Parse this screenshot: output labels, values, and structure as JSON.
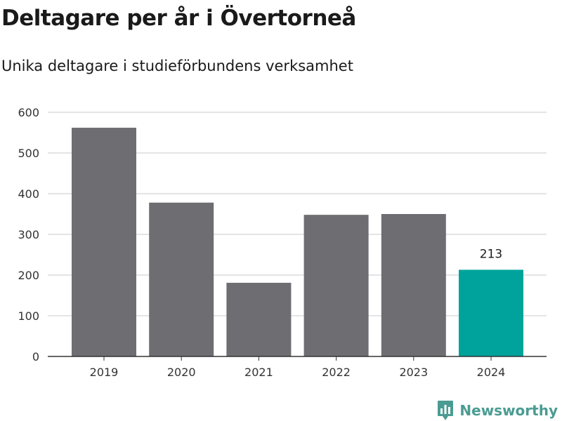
{
  "title": "Deltagare per år i Övertorneå",
  "subtitle": "Unika deltagare i studieförbundens verksamhet",
  "brand": {
    "name": "Newsworthy",
    "icon": "bar-chart-speech-bubble-icon",
    "color": "#4a9c92"
  },
  "chart_data": {
    "type": "bar",
    "title": "Deltagare per år i Övertorneå",
    "subtitle": "Unika deltagare i studieförbundens verksamhet",
    "xlabel": "",
    "ylabel": "",
    "categories": [
      "2019",
      "2020",
      "2021",
      "2022",
      "2023",
      "2024"
    ],
    "values": [
      562,
      378,
      181,
      348,
      350,
      213
    ],
    "ylim": [
      0,
      600
    ],
    "yticks": [
      0,
      100,
      200,
      300,
      400,
      500,
      600
    ],
    "grid": true,
    "legend": "none",
    "colors": {
      "default": "#6e6d72",
      "highlight": "#00a39b",
      "grid": "#dcdcdc",
      "axis": "#333333"
    },
    "highlight_index": 5,
    "data_labels": [
      {
        "category": "2024",
        "text": "213"
      }
    ]
  }
}
